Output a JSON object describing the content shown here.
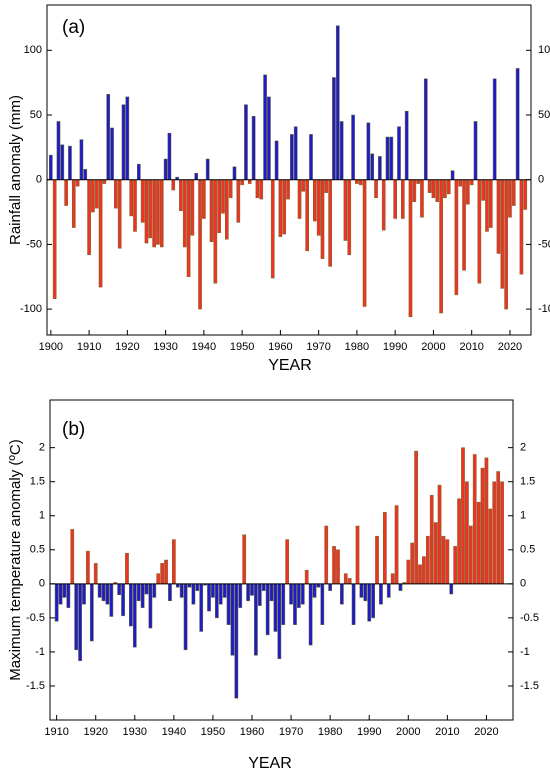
{
  "chart_data": [
    {
      "type": "bar",
      "panel_label": "(a)",
      "y_label": "Rainfall anomaly (mm)",
      "x_label": "YEAR",
      "positive_color": "#1c1cc8",
      "negative_color": "#ee3324",
      "edge_color": "#6e6a2c",
      "xlim": [
        1899,
        2025.5
      ],
      "xticks": [
        1900,
        1910,
        1920,
        1930,
        1940,
        1950,
        1960,
        1970,
        1980,
        1990,
        2000,
        2010,
        2020
      ],
      "ylim": [
        -120,
        135
      ],
      "yticks": [
        -100,
        -50,
        0,
        50,
        100
      ],
      "x": [
        1900,
        1901,
        1902,
        1903,
        1904,
        1905,
        1906,
        1907,
        1908,
        1909,
        1910,
        1911,
        1912,
        1913,
        1914,
        1915,
        1916,
        1917,
        1918,
        1919,
        1920,
        1921,
        1922,
        1923,
        1924,
        1925,
        1926,
        1927,
        1928,
        1929,
        1930,
        1931,
        1932,
        1933,
        1934,
        1935,
        1936,
        1937,
        1938,
        1939,
        1940,
        1941,
        1942,
        1943,
        1944,
        1945,
        1946,
        1947,
        1948,
        1949,
        1950,
        1951,
        1952,
        1953,
        1954,
        1955,
        1956,
        1957,
        1958,
        1959,
        1960,
        1961,
        1962,
        1963,
        1964,
        1965,
        1966,
        1967,
        1968,
        1969,
        1970,
        1971,
        1972,
        1973,
        1974,
        1975,
        1976,
        1977,
        1978,
        1979,
        1980,
        1981,
        1982,
        1983,
        1984,
        1985,
        1986,
        1987,
        1988,
        1989,
        1990,
        1991,
        1992,
        1993,
        1994,
        1995,
        1996,
        1997,
        1998,
        1999,
        2000,
        2001,
        2002,
        2003,
        2004,
        2005,
        2006,
        2007,
        2008,
        2009,
        2010,
        2011,
        2012,
        2013,
        2014,
        2015,
        2016,
        2017,
        2018,
        2019,
        2020,
        2021,
        2022,
        2023,
        2024
      ],
      "values": [
        19,
        -92,
        45,
        27,
        -20,
        26,
        -37,
        -5,
        31,
        8,
        -58,
        -25,
        -22,
        -83,
        -3,
        66,
        40,
        -22,
        -53,
        58,
        64,
        -28,
        -40,
        12,
        -33,
        -49,
        -45,
        -52,
        -50,
        -52,
        16,
        36,
        -8,
        2,
        -24,
        -52,
        -75,
        -43,
        5,
        -100,
        -30,
        16,
        -48,
        -80,
        -41,
        -26,
        -46,
        -14,
        10,
        -33,
        -4,
        58,
        -3,
        49,
        -14,
        -15,
        81,
        64,
        -76,
        30,
        -44,
        -42,
        -15,
        35,
        41,
        -30,
        -9,
        -55,
        35,
        -32,
        -43,
        -61,
        -10,
        -67,
        79,
        119,
        45,
        -47,
        -58,
        50,
        -3,
        -4,
        -98,
        44,
        20,
        -14,
        18,
        -39,
        33,
        33,
        -30,
        41,
        -30,
        53,
        -106,
        -17,
        -3,
        -29,
        78,
        -10,
        -14,
        -17,
        -103,
        -14,
        -11,
        7,
        -89,
        -5,
        -70,
        -19,
        -4,
        45,
        -80,
        -16,
        -40,
        -37,
        78,
        -57,
        -84,
        -100,
        -29,
        -20,
        86,
        -73,
        -23
      ]
    },
    {
      "type": "bar",
      "panel_label": "(b)",
      "y_label": "Maximum temperature anomaly (ºC)",
      "x_label": "YEAR",
      "positive_color": "#ee3324",
      "negative_color": "#1c1cc8",
      "edge_color": "#6e6a2c",
      "xlim": [
        1908.3,
        2026.8
      ],
      "xticks": [
        1910,
        1920,
        1930,
        1940,
        1950,
        1960,
        1970,
        1980,
        1990,
        2000,
        2010,
        2020
      ],
      "ylim": [
        -2.0,
        2.7
      ],
      "yticks": [
        -1.5,
        -1,
        -0.5,
        0,
        0.5,
        1,
        1.5,
        2
      ],
      "x": [
        1910,
        1911,
        1912,
        1913,
        1914,
        1915,
        1916,
        1917,
        1918,
        1919,
        1920,
        1921,
        1922,
        1923,
        1924,
        1925,
        1926,
        1927,
        1928,
        1929,
        1930,
        1931,
        1932,
        1933,
        1934,
        1935,
        1936,
        1937,
        1938,
        1939,
        1940,
        1941,
        1942,
        1943,
        1944,
        1945,
        1946,
        1947,
        1948,
        1949,
        1950,
        1951,
        1952,
        1953,
        1954,
        1955,
        1956,
        1957,
        1958,
        1959,
        1960,
        1961,
        1962,
        1963,
        1964,
        1965,
        1966,
        1967,
        1968,
        1969,
        1970,
        1971,
        1972,
        1973,
        1974,
        1975,
        1976,
        1977,
        1978,
        1979,
        1980,
        1981,
        1982,
        1983,
        1984,
        1985,
        1986,
        1987,
        1988,
        1989,
        1990,
        1991,
        1992,
        1993,
        1994,
        1995,
        1996,
        1997,
        1998,
        1999,
        2000,
        2001,
        2002,
        2003,
        2004,
        2005,
        2006,
        2007,
        2008,
        2009,
        2010,
        2011,
        2012,
        2013,
        2014,
        2015,
        2016,
        2017,
        2018,
        2019,
        2020,
        2021,
        2022,
        2023,
        2024
      ],
      "values": [
        -0.55,
        -0.3,
        -0.2,
        -0.35,
        0.8,
        -0.97,
        -1.13,
        -0.3,
        0.48,
        -0.84,
        0.3,
        -0.2,
        -0.25,
        -0.3,
        -0.48,
        0.02,
        -0.16,
        -0.47,
        0.45,
        -0.62,
        -0.93,
        -0.25,
        -0.35,
        -0.15,
        -0.65,
        -0.2,
        0.15,
        0.3,
        0.35,
        -0.25,
        0.65,
        -0.05,
        -0.2,
        -0.97,
        -0.05,
        -0.3,
        -0.1,
        -0.7,
        -0.02,
        -0.4,
        -0.2,
        -0.5,
        -0.3,
        -0.2,
        -0.6,
        -1.05,
        -1.68,
        -0.35,
        0.72,
        -0.25,
        -0.17,
        -1.05,
        -0.32,
        -0.1,
        -0.75,
        -0.25,
        -0.7,
        -1.1,
        -0.6,
        0.65,
        -0.3,
        -0.6,
        -0.35,
        -0.3,
        0.2,
        -0.9,
        -0.2,
        -0.05,
        -0.6,
        0.85,
        -0.1,
        0.55,
        0.5,
        -0.3,
        0.15,
        0.08,
        -0.6,
        0.85,
        -0.2,
        -0.25,
        -0.55,
        -0.5,
        0.7,
        -0.3,
        1.05,
        -0.2,
        0.15,
        1.15,
        -0.1,
        0.02,
        0.35,
        0.6,
        1.95,
        0.28,
        0.4,
        0.7,
        1.3,
        0.9,
        1.45,
        0.7,
        0.65,
        -0.15,
        0.55,
        1.25,
        2.0,
        1.5,
        0.85,
        1.9,
        1.2,
        1.7,
        1.85,
        1.1,
        1.5,
        1.65,
        1.5
      ]
    }
  ]
}
